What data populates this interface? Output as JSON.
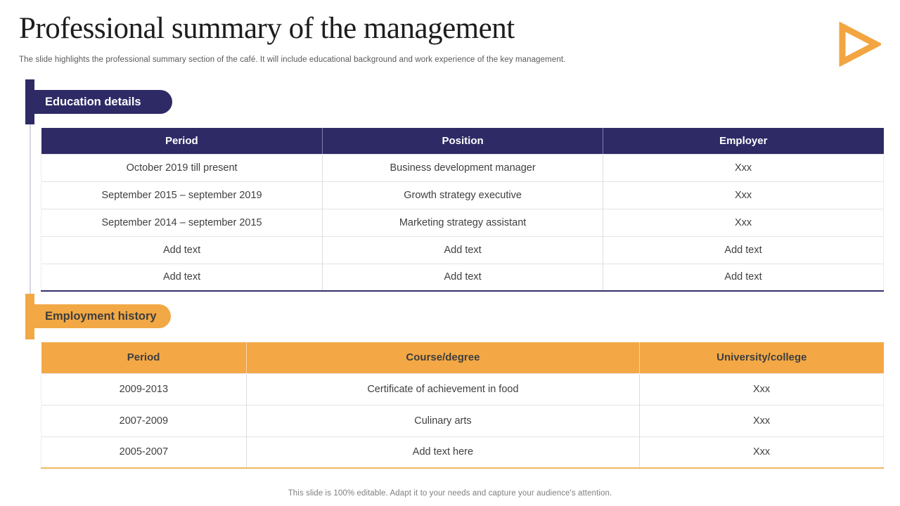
{
  "slide": {
    "title": "Professional summary of the management",
    "subtitle": "The slide highlights the professional summary section of the café.  It will include educational background and work experience of the key management.",
    "footer": "This slide is 100% editable. Adapt it to your needs and capture your audience's attention."
  },
  "colors": {
    "navy": "#2e2a66",
    "orange": "#f2a844",
    "body_text": "#3f3f3f",
    "muted_text": "#7f7f7f"
  },
  "icons": {
    "next_arrow": "triangle-right-outline"
  },
  "education_section": {
    "label": "Education details",
    "table": {
      "headers": [
        "Period",
        "Position",
        "Employer"
      ],
      "rows": [
        [
          "October 2019 till present",
          "Business development manager",
          "Xxx"
        ],
        [
          "September 2015 – september 2019",
          "Growth strategy executive",
          "Xxx"
        ],
        [
          "September 2014 – september 2015",
          "Marketing strategy assistant",
          "Xxx"
        ],
        [
          "Add text",
          "Add text",
          "Add text"
        ],
        [
          "Add text",
          "Add text",
          "Add text"
        ]
      ]
    }
  },
  "employment_section": {
    "label": "Employment history",
    "table": {
      "headers": [
        "Period",
        "Course/degree",
        "University/college"
      ],
      "rows": [
        [
          "2009-2013",
          "Certificate of achievement in food",
          "Xxx"
        ],
        [
          "2007-2009",
          "Culinary arts",
          "Xxx"
        ],
        [
          "2005-2007",
          "Add text here",
          "Xxx"
        ]
      ]
    }
  }
}
